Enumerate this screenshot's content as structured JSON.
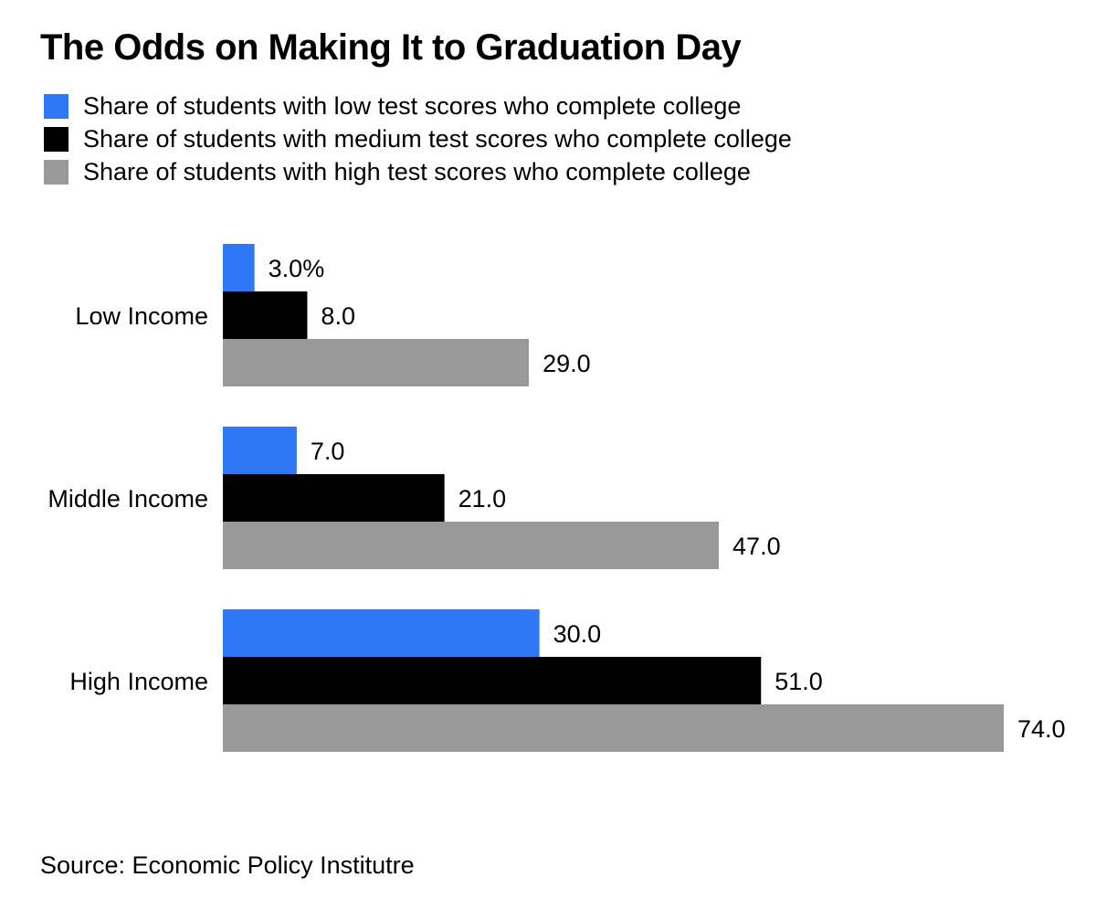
{
  "title": "The Odds on Making It to Graduation Day",
  "source": "Source: Economic Policy Institutre",
  "colors": {
    "low": "#2f78f5",
    "medium": "#000000",
    "high": "#999999"
  },
  "chart_data": {
    "type": "bar",
    "orientation": "horizontal",
    "title": "The Odds on Making It to Graduation Day",
    "categories": [
      "Low Income",
      "Middle Income",
      "High Income"
    ],
    "series": [
      {
        "name": "Share of students with low test scores who complete college",
        "color": "#2f78f5",
        "values": [
          3.0,
          7.0,
          30.0
        ],
        "labels": [
          "3.0%",
          "7.0",
          "30.0"
        ]
      },
      {
        "name": "Share of students with medium test scores who complete college",
        "color": "#000000",
        "values": [
          8.0,
          21.0,
          51.0
        ],
        "labels": [
          "8.0",
          "21.0",
          "51.0"
        ]
      },
      {
        "name": "Share of students with high test scores who complete college",
        "color": "#999999",
        "values": [
          29.0,
          47.0,
          74.0
        ],
        "labels": [
          "29.0",
          "47.0",
          "74.0"
        ]
      }
    ],
    "xlim": [
      0,
      74
    ],
    "grid": false,
    "legend": "top-left"
  }
}
